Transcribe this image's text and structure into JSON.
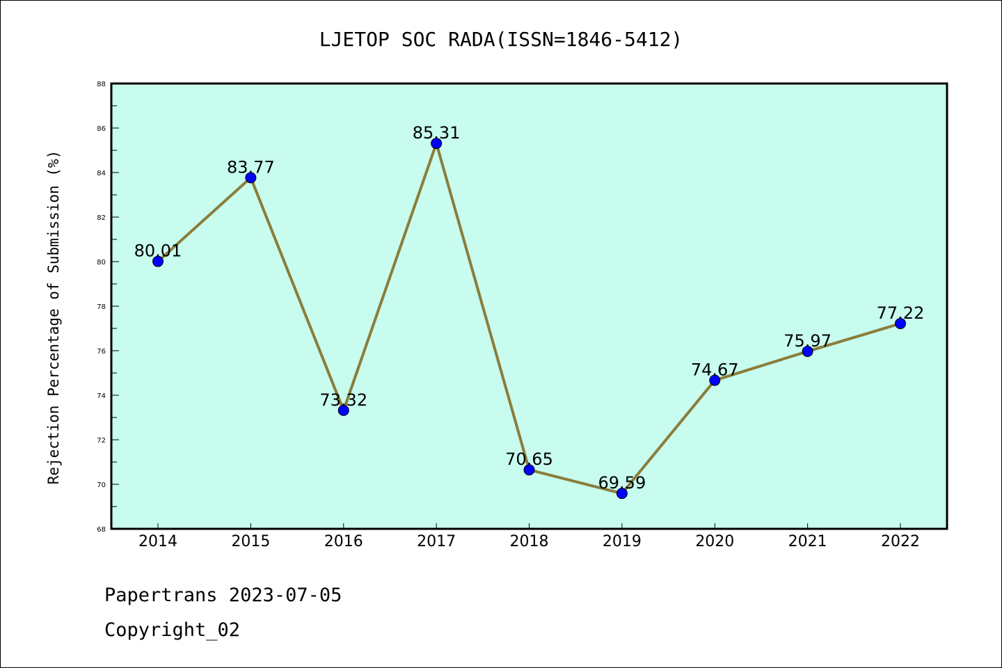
{
  "chart_data": {
    "type": "line",
    "title": "LJETOP SOC RADA(ISSN=1846-5412)",
    "xlabel": "",
    "ylabel": "Rejection Percentage of Submission (%)",
    "categories": [
      "2014",
      "2015",
      "2016",
      "2017",
      "2018",
      "2019",
      "2020",
      "2021",
      "2022"
    ],
    "series": [
      {
        "name": "Rejection Percentage",
        "values": [
          80.01,
          83.77,
          73.32,
          85.31,
          70.65,
          69.59,
          74.67,
          75.97,
          77.22
        ],
        "labels": [
          "80.01",
          "83.77",
          "73.32",
          "85.31",
          "70.65",
          "69.59",
          "74.67",
          "75.97",
          "77.22"
        ]
      }
    ],
    "ylim": [
      68,
      88
    ],
    "yticks": [
      "68",
      "70",
      "72",
      "74",
      "76",
      "78",
      "80",
      "82",
      "84",
      "86",
      "88"
    ],
    "grid": false,
    "legend": "none",
    "colors": {
      "plot_background": "#c7fcee",
      "line": "#8b7d3a",
      "marker": "#0000ff"
    }
  },
  "footer": {
    "line1": "Papertrans 2023-07-05",
    "line2": "Copyright_02"
  }
}
